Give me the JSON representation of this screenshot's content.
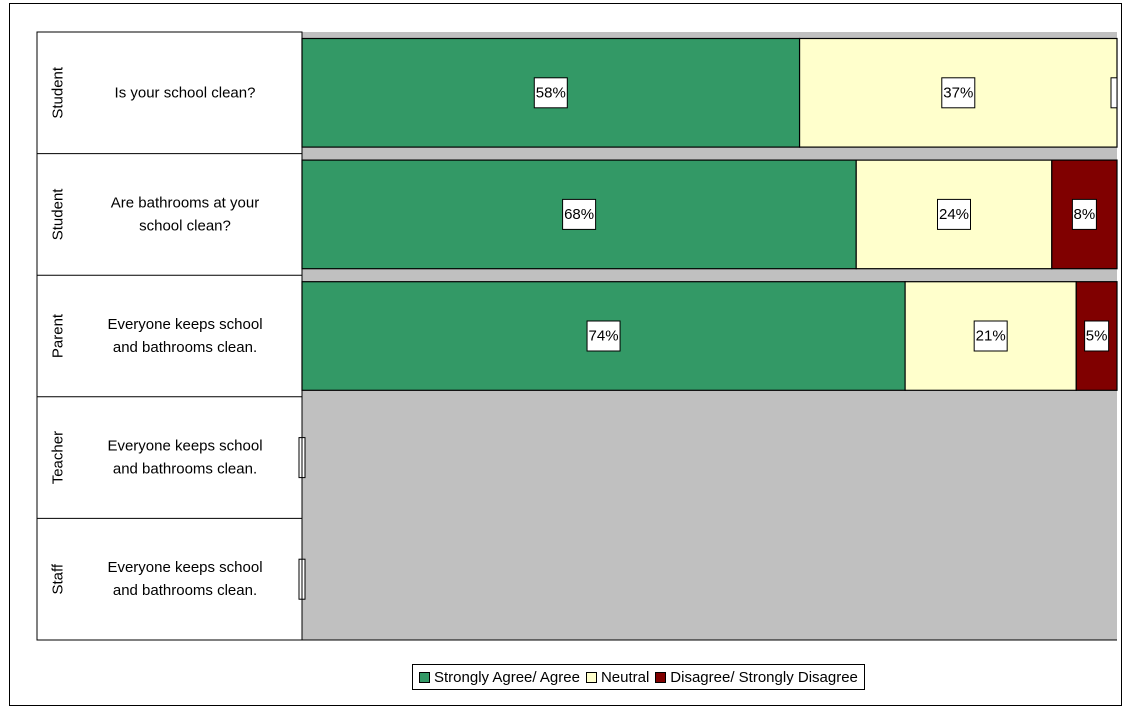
{
  "chart_data": {
    "type": "bar",
    "orientation": "horizontal",
    "stacked": true,
    "percent": true,
    "rows": [
      {
        "group": "Student",
        "question": [
          "Is your school clean?"
        ],
        "values": [
          58,
          37,
          0
        ],
        "labels": [
          "58%",
          "37%",
          ""
        ]
      },
      {
        "group": "Student",
        "question": [
          "Are bathrooms at your",
          "school clean?"
        ],
        "values": [
          68,
          24,
          8
        ],
        "labels": [
          "68%",
          "24%",
          "8%"
        ]
      },
      {
        "group": "Parent",
        "question": [
          "Everyone keeps school",
          "and bathrooms clean."
        ],
        "values": [
          74,
          21,
          5
        ],
        "labels": [
          "74%",
          "21%",
          "5%"
        ]
      },
      {
        "group": "Teacher",
        "question": [
          "Everyone keeps school",
          "and bathrooms clean."
        ],
        "values": [
          0,
          0,
          0
        ],
        "labels": [
          "",
          "",
          ""
        ]
      },
      {
        "group": "Staff",
        "question": [
          "Everyone keeps school",
          "and bathrooms clean."
        ],
        "values": [
          0,
          0,
          0
        ],
        "labels": [
          "",
          "",
          ""
        ]
      }
    ],
    "series": [
      {
        "name": "Strongly Agree/ Agree",
        "color": "#339966"
      },
      {
        "name": "Neutral",
        "color": "#ffffcc"
      },
      {
        "name": "Disagree/ Strongly Disagree",
        "color": "#800000"
      }
    ],
    "plot_background": "#c0c0c0",
    "legend_position": "bottom"
  }
}
